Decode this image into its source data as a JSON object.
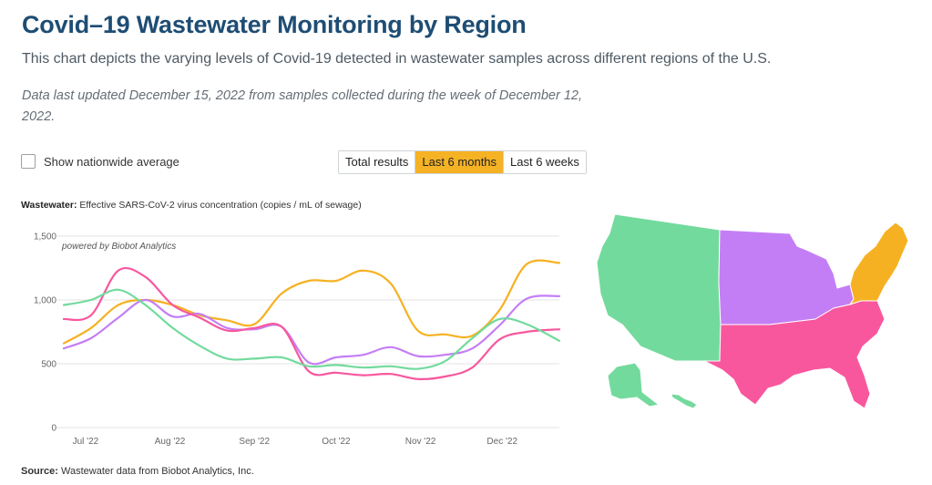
{
  "page": {
    "title": "Covid–19 Wastewater Monitoring by Region",
    "subtitle": "This chart depicts the varying levels of Covid-19 detected in wastewater samples across different regions of the U.S.",
    "note": "Data last updated December 15, 2022 from samples collected during the week of December 12, 2022."
  },
  "controls": {
    "checkbox_label": "Show nationwide average",
    "checkbox_checked": false,
    "tabs": [
      {
        "label": "Total results",
        "active": false
      },
      {
        "label": "Last 6 months",
        "active": true
      },
      {
        "label": "Last 6 weeks",
        "active": false
      }
    ]
  },
  "chart_heading": {
    "bold": "Wastewater:",
    "text": " Effective SARS-CoV-2 virus concentration (copies / mL of sewage)"
  },
  "watermark": "powered by Biobot Analytics",
  "source": {
    "bold": "Source:",
    "text": " Wastewater data from Biobot Analytics, Inc."
  },
  "colors": {
    "west": "#73da9d",
    "midwest": "#c47ef5",
    "south": "#f8579e",
    "northeast": "#f6b122",
    "grid": "#e3e3e3",
    "accent": "#f5b224",
    "title": "#1e4d74"
  },
  "chart_data": {
    "type": "line",
    "ylim": [
      0,
      1500
    ],
    "yticks": [
      0,
      500,
      1000,
      1500
    ],
    "ytick_labels": [
      "0",
      "500",
      "1,000",
      "1,500"
    ],
    "xlim": [
      "2022-06-23",
      "2022-12-22"
    ],
    "xticks": [
      "2022-07-01",
      "2022-08-01",
      "2022-09-01",
      "2022-10-01",
      "2022-11-01",
      "2022-12-01"
    ],
    "xtick_labels": [
      "Jul '22",
      "Aug '22",
      "Sep '22",
      "Oct '22",
      "Nov '22",
      "Dec '22"
    ],
    "grid": true,
    "series": [
      {
        "key": "northeast",
        "x": [
          "2022-06-23",
          "2022-07-03",
          "2022-07-13",
          "2022-07-23",
          "2022-08-02",
          "2022-08-12",
          "2022-08-22",
          "2022-09-01",
          "2022-09-11",
          "2022-09-21",
          "2022-10-01",
          "2022-10-11",
          "2022-10-21",
          "2022-10-31",
          "2022-11-10",
          "2022-11-20",
          "2022-11-30",
          "2022-12-10",
          "2022-12-22"
        ],
        "y": [
          660,
          780,
          960,
          1000,
          960,
          880,
          840,
          810,
          1050,
          1150,
          1150,
          1230,
          1130,
          760,
          730,
          720,
          920,
          1280,
          1290
        ]
      },
      {
        "key": "midwest",
        "x": [
          "2022-06-23",
          "2022-07-03",
          "2022-07-13",
          "2022-07-23",
          "2022-08-02",
          "2022-08-12",
          "2022-08-22",
          "2022-09-01",
          "2022-09-11",
          "2022-09-21",
          "2022-10-01",
          "2022-10-11",
          "2022-10-21",
          "2022-10-31",
          "2022-11-10",
          "2022-11-20",
          "2022-11-30",
          "2022-12-10",
          "2022-12-22"
        ],
        "y": [
          620,
          700,
          860,
          1000,
          870,
          890,
          780,
          770,
          790,
          510,
          550,
          570,
          630,
          560,
          570,
          620,
          800,
          1010,
          1030
        ]
      },
      {
        "key": "south",
        "x": [
          "2022-06-23",
          "2022-07-03",
          "2022-07-13",
          "2022-07-23",
          "2022-08-02",
          "2022-08-12",
          "2022-08-22",
          "2022-09-01",
          "2022-09-11",
          "2022-09-21",
          "2022-10-01",
          "2022-10-11",
          "2022-10-21",
          "2022-10-31",
          "2022-11-10",
          "2022-11-20",
          "2022-11-30",
          "2022-12-10",
          "2022-12-22"
        ],
        "y": [
          850,
          880,
          1230,
          1180,
          960,
          860,
          760,
          780,
          790,
          440,
          430,
          410,
          420,
          380,
          400,
          470,
          690,
          750,
          770
        ]
      },
      {
        "key": "west",
        "x": [
          "2022-06-23",
          "2022-07-03",
          "2022-07-13",
          "2022-07-23",
          "2022-08-02",
          "2022-08-12",
          "2022-08-22",
          "2022-09-01",
          "2022-09-11",
          "2022-09-21",
          "2022-10-01",
          "2022-10-11",
          "2022-10-21",
          "2022-10-31",
          "2022-11-10",
          "2022-11-20",
          "2022-11-30",
          "2022-12-10",
          "2022-12-22"
        ],
        "y": [
          960,
          1000,
          1080,
          960,
          780,
          640,
          540,
          540,
          550,
          480,
          490,
          470,
          480,
          460,
          520,
          700,
          850,
          810,
          680
        ]
      }
    ]
  },
  "map_data": {
    "regions": [
      {
        "key": "west",
        "label": "West"
      },
      {
        "key": "midwest",
        "label": "Midwest"
      },
      {
        "key": "south",
        "label": "South"
      },
      {
        "key": "northeast",
        "label": "Northeast"
      }
    ]
  }
}
